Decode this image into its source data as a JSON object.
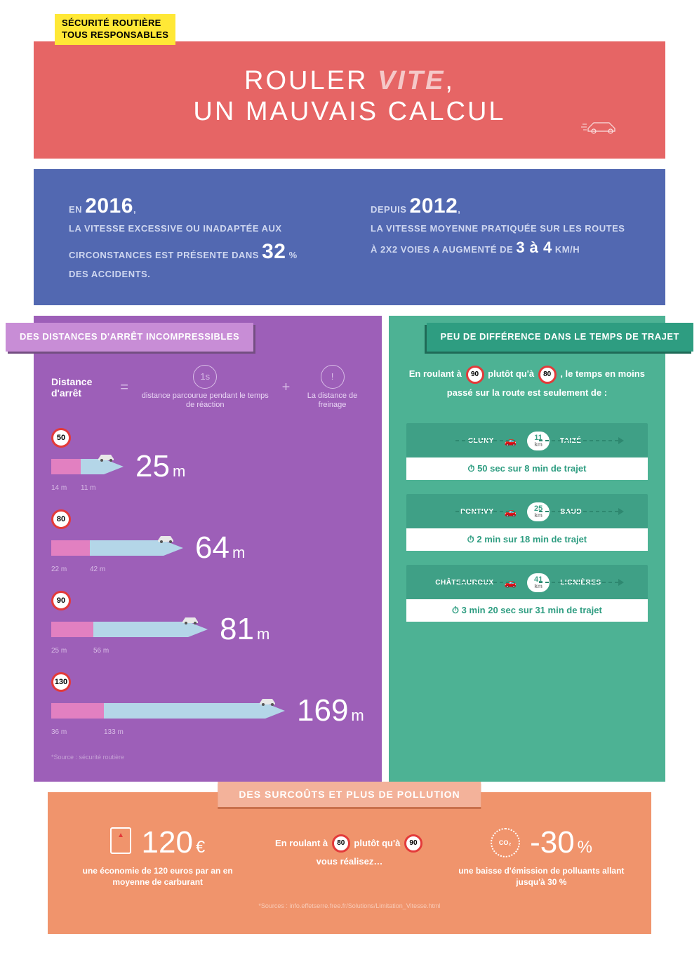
{
  "logo": {
    "line1": "SÉCURITÉ ROUTIÈRE",
    "line2": "TOUS RESPONSABLES"
  },
  "hero": {
    "word1": "ROULER",
    "word2": "VITE",
    "line2": "UN MAUVAIS CALCUL",
    "comma": ","
  },
  "colors": {
    "hero": "#e66565",
    "stats": "#5268b1",
    "purple": "#9d5fb8",
    "purple_ribbon": "#c88dd6",
    "green": "#4db294",
    "green_dark": "#3fa086",
    "green_ribbon": "#2e9d81",
    "orange": "#f0946c",
    "orange_ribbon": "#f3b29a",
    "seg_a": "#e280c1",
    "seg_b": "#b4d6e8",
    "sign_border": "#e33a3a"
  },
  "stats": {
    "left": {
      "prefix": "EN",
      "year": "2016",
      "comma": ",",
      "text": "LA VITESSE EXCESSIVE OU INADAPTÉE AUX CIRCONSTANCES EST PRÉSENTE DANS",
      "value": "32",
      "unit": "%",
      "suffix": "DES ACCIDENTS."
    },
    "right": {
      "prefix": "DEPUIS",
      "year": "2012",
      "comma": ",",
      "text": "LA VITESSE MOYENNE PRATIQUÉE SUR LES ROUTES À 2X2 VOIES A AUGMENTÉ DE",
      "value": "3 à 4",
      "unit": "KM/H"
    }
  },
  "purple": {
    "title": "DES DISTANCES D'ARRÊT INCOMPRESSIBLES",
    "formula": {
      "label": "Distance d'arrêt",
      "eq": "=",
      "part1_icon": "1s",
      "part1": "distance parcourue pendant le temps de réaction",
      "plus": "+",
      "part2_icon": "!",
      "part2": "La distance de freinage"
    },
    "rows": [
      {
        "speed": "50",
        "seg_a": 14,
        "seg_b": 11,
        "total": "25",
        "a_lbl": "14 m",
        "b_lbl": "11 m",
        "barA": 42,
        "barB": 33
      },
      {
        "speed": "80",
        "seg_a": 22,
        "seg_b": 42,
        "total": "64",
        "a_lbl": "22 m",
        "b_lbl": "42 m",
        "barA": 55,
        "barB": 105
      },
      {
        "speed": "90",
        "seg_a": 25,
        "seg_b": 56,
        "total": "81",
        "a_lbl": "25 m",
        "b_lbl": "56 m",
        "barA": 60,
        "barB": 135
      },
      {
        "speed": "130",
        "seg_a": 36,
        "seg_b": 133,
        "total": "169",
        "a_lbl": "36 m",
        "b_lbl": "133 m",
        "barA": 75,
        "barB": 230
      }
    ],
    "source": "*Source : sécurité routière"
  },
  "green": {
    "title": "PEU DE DIFFÉRENCE DANS LE TEMPS DE TRAJET",
    "intro_a": "En roulant à",
    "intro_90": "90",
    "intro_b": "plutôt qu'à",
    "intro_80": "80",
    "intro_c": ", le temps en moins",
    "intro_d": "passé sur la route est seulement de :",
    "trips": [
      {
        "from": "CLUNY",
        "to": "TAIZÉ",
        "km": "11",
        "saving": "50 sec sur 8 min de trajet"
      },
      {
        "from": "PONTIVY",
        "to": "BAUD",
        "km": "25",
        "saving": "2 min sur 18 min de trajet"
      },
      {
        "from": "CHÂTEAUROUX",
        "to": "LIGNIÈRES",
        "km": "41",
        "saving": "3 min 20 sec sur 31 min de trajet"
      }
    ]
  },
  "orange": {
    "title": "DES SURCOÛTS ET PLUS DE POLLUTION",
    "mid_a": "En roulant à",
    "mid_80": "80",
    "mid_b": "plutôt qu'à",
    "mid_90": "90",
    "mid_c": "vous réalisez…",
    "left_value": "120",
    "left_unit": "€",
    "left_text": "une économie de 120 euros par an en moyenne de carburant",
    "right_value": "-30",
    "right_unit": "%",
    "right_text": "une baisse d'émission de polluants allant jusqu'à 30 %",
    "co2_label": "CO₂",
    "source": "*Sources : info.effetserre.free.fr/Solutions/Limitation_Vitesse.html"
  }
}
